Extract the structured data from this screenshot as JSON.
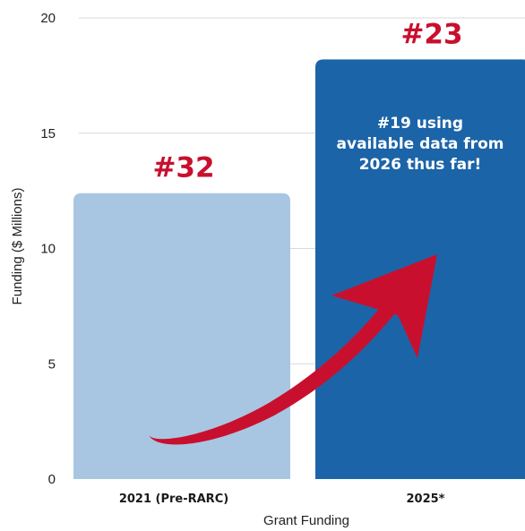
{
  "chart_data": {
    "type": "bar",
    "categories": [
      "2021 (Pre-RARC)",
      "2025*"
    ],
    "values": [
      12.4,
      18.2
    ],
    "xlabel": "Grant Funding",
    "ylabel": "Funding ($ Millions)",
    "ylim": [
      0,
      20
    ],
    "yticks": [
      0,
      5,
      10,
      15,
      20
    ],
    "grid": true,
    "bar_colors": [
      "#a8c6e2",
      "#1c64a8"
    ],
    "rank_labels": [
      "#32",
      "#23"
    ],
    "rank_color": "#c8102e",
    "annotation": {
      "lines": [
        "#19 using",
        "available data from",
        "2026 thus far!"
      ],
      "color": "#ffffff"
    },
    "arrow_color": "#c8102e",
    "gridline_color": "#d9d9d9"
  }
}
